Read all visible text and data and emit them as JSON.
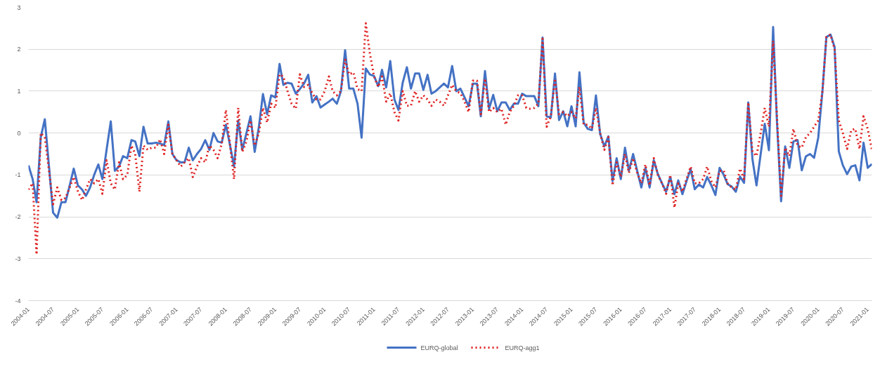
{
  "chart_data": {
    "type": "line",
    "x": [
      "2004-01",
      "2004-02",
      "2004-03",
      "2004-04",
      "2004-05",
      "2004-06",
      "2004-07",
      "2004-08",
      "2004-09",
      "2004-10",
      "2004-11",
      "2004-12",
      "2005-01",
      "2005-02",
      "2005-03",
      "2005-04",
      "2005-05",
      "2005-06",
      "2005-07",
      "2005-08",
      "2005-09",
      "2005-10",
      "2005-11",
      "2005-12",
      "2006-01",
      "2006-02",
      "2006-03",
      "2006-04",
      "2006-05",
      "2006-06",
      "2006-07",
      "2006-08",
      "2006-09",
      "2006-10",
      "2006-11",
      "2006-12",
      "2007-01",
      "2007-02",
      "2007-03",
      "2007-04",
      "2007-05",
      "2007-06",
      "2007-07",
      "2007-08",
      "2007-09",
      "2007-10",
      "2007-11",
      "2007-12",
      "2008-01",
      "2008-02",
      "2008-03",
      "2008-04",
      "2008-05",
      "2008-06",
      "2008-07",
      "2008-08",
      "2008-09",
      "2008-10",
      "2008-11",
      "2008-12",
      "2009-01",
      "2009-02",
      "2009-03",
      "2009-04",
      "2009-05",
      "2009-06",
      "2009-07",
      "2009-08",
      "2009-09",
      "2009-10",
      "2009-11",
      "2009-12",
      "2010-01",
      "2010-02",
      "2010-03",
      "2010-04",
      "2010-05",
      "2010-06",
      "2010-07",
      "2010-08",
      "2010-09",
      "2010-10",
      "2010-11",
      "2010-12",
      "2011-01",
      "2011-02",
      "2011-03",
      "2011-04",
      "2011-05",
      "2011-06",
      "2011-07",
      "2011-08",
      "2011-09",
      "2011-10",
      "2011-11",
      "2011-12",
      "2012-01",
      "2012-02",
      "2012-03",
      "2012-04",
      "2012-05",
      "2012-06",
      "2012-07",
      "2012-08",
      "2012-09",
      "2012-10",
      "2012-11",
      "2012-12",
      "2013-01",
      "2013-02",
      "2013-03",
      "2013-04",
      "2013-05",
      "2013-06",
      "2013-07",
      "2013-08",
      "2013-09",
      "2013-10",
      "2013-11",
      "2013-12",
      "2014-01",
      "2014-02",
      "2014-03",
      "2014-04",
      "2014-05",
      "2014-06",
      "2014-07",
      "2014-08",
      "2014-09",
      "2014-10",
      "2014-11",
      "2014-12",
      "2015-01",
      "2015-02",
      "2015-03",
      "2015-04",
      "2015-05",
      "2015-06",
      "2015-07",
      "2015-08",
      "2015-09",
      "2015-10",
      "2015-11",
      "2015-12",
      "2016-01",
      "2016-02",
      "2016-03",
      "2016-04",
      "2016-05",
      "2016-06",
      "2016-07",
      "2016-08",
      "2016-09",
      "2016-10",
      "2016-11",
      "2016-12",
      "2017-01",
      "2017-02",
      "2017-03",
      "2017-04",
      "2017-05",
      "2017-06",
      "2017-07",
      "2017-08",
      "2017-09",
      "2017-10",
      "2017-11",
      "2017-12",
      "2018-01",
      "2018-02",
      "2018-03",
      "2018-04",
      "2018-05",
      "2018-06",
      "2018-07",
      "2018-08",
      "2018-09",
      "2018-10",
      "2018-11",
      "2018-12",
      "2019-01",
      "2019-02",
      "2019-03",
      "2019-04",
      "2019-05",
      "2019-06",
      "2019-07",
      "2019-08",
      "2019-09",
      "2019-10",
      "2019-11",
      "2019-12",
      "2020-01",
      "2020-02",
      "2020-03",
      "2020-04",
      "2020-05",
      "2020-06",
      "2020-07",
      "2020-08",
      "2020-09",
      "2020-10",
      "2020-11",
      "2020-12",
      "2021-01",
      "2021-02"
    ],
    "series": [
      {
        "name": "EURQ-global",
        "color": "#4472c4",
        "line_style": "solid",
        "values": [
          -0.77,
          -1.1,
          -1.65,
          -0.1,
          0.33,
          -0.8,
          -1.9,
          -2.02,
          -1.65,
          -1.65,
          -1.25,
          -0.85,
          -1.25,
          -1.35,
          -1.5,
          -1.3,
          -1.0,
          -0.75,
          -1.1,
          -0.4,
          0.28,
          -0.9,
          -0.8,
          -0.55,
          -0.6,
          -0.17,
          -0.2,
          -0.55,
          0.15,
          -0.25,
          -0.25,
          -0.23,
          -0.25,
          -0.29,
          0.28,
          -0.5,
          -0.65,
          -0.7,
          -0.7,
          -0.35,
          -0.65,
          -0.5,
          -0.38,
          -0.17,
          -0.4,
          0.0,
          -0.2,
          -0.23,
          0.2,
          -0.3,
          -0.8,
          0.3,
          -0.4,
          0.0,
          0.4,
          -0.45,
          0.15,
          0.93,
          0.45,
          0.9,
          0.85,
          1.65,
          1.15,
          1.2,
          1.18,
          0.94,
          1.05,
          1.18,
          1.39,
          0.73,
          0.88,
          0.61,
          0.68,
          0.75,
          0.82,
          0.7,
          1.0,
          1.98,
          1.06,
          1.06,
          0.7,
          -0.11,
          1.54,
          1.4,
          1.36,
          1.12,
          1.51,
          1.09,
          1.72,
          0.8,
          0.55,
          1.2,
          1.57,
          1.06,
          1.42,
          1.42,
          1.03,
          1.39,
          0.94,
          1.0,
          1.09,
          1.18,
          1.09,
          1.6,
          1.0,
          1.06,
          0.85,
          0.64,
          1.18,
          1.18,
          0.4,
          1.48,
          0.58,
          0.91,
          0.52,
          0.73,
          0.73,
          0.55,
          0.7,
          0.7,
          0.94,
          0.88,
          0.88,
          0.88,
          0.64,
          2.28,
          0.4,
          0.37,
          1.42,
          0.31,
          0.52,
          0.16,
          0.64,
          0.16,
          1.45,
          0.25,
          0.1,
          0.07,
          0.9,
          -0.02,
          -0.32,
          -0.08,
          -1.15,
          -0.6,
          -1.1,
          -0.35,
          -0.9,
          -0.5,
          -0.9,
          -1.3,
          -0.83,
          -1.3,
          -0.65,
          -0.98,
          -1.2,
          -1.4,
          -1.05,
          -1.46,
          -1.13,
          -1.46,
          -1.15,
          -0.86,
          -1.34,
          -1.23,
          -1.3,
          -1.05,
          -1.25,
          -1.48,
          -0.83,
          -1.0,
          -1.22,
          -1.28,
          -1.4,
          -1.04,
          -1.19,
          0.73,
          -0.62,
          -1.25,
          -0.5,
          0.22,
          -0.41,
          2.53,
          0.3,
          -1.63,
          -0.32,
          -0.83,
          -0.2,
          -0.17,
          -0.89,
          -0.56,
          -0.5,
          -0.59,
          -0.11,
          1.0,
          2.29,
          2.35,
          2.05,
          -0.44,
          -0.77,
          -0.98,
          -0.8,
          -0.77,
          -1.13,
          -0.23,
          -0.83,
          -0.74
        ]
      },
      {
        "name": "EURQ-agg1",
        "color": "#e02020",
        "line_style": "dotted",
        "values": [
          -1.35,
          -1.2,
          -2.9,
          0.0,
          -0.1,
          -0.9,
          -1.7,
          -1.3,
          -1.6,
          -1.55,
          -1.3,
          -1.05,
          -1.4,
          -1.6,
          -1.35,
          -1.1,
          -1.2,
          -1.1,
          -1.45,
          -0.65,
          -1.2,
          -1.35,
          -0.7,
          -1.1,
          -1.0,
          -0.3,
          -0.5,
          -1.4,
          -0.3,
          -0.4,
          -0.35,
          -0.35,
          -0.15,
          -0.5,
          0.2,
          -0.5,
          -0.65,
          -0.8,
          -0.7,
          -0.6,
          -1.05,
          -0.8,
          -0.6,
          -0.7,
          -0.3,
          -0.4,
          -0.6,
          -0.25,
          0.55,
          -0.3,
          -1.1,
          0.6,
          -0.45,
          -0.2,
          0.3,
          -0.3,
          0.0,
          0.6,
          0.25,
          0.7,
          0.6,
          1.4,
          1.35,
          1.0,
          0.7,
          0.58,
          1.4,
          1.1,
          1.15,
          0.95,
          0.8,
          0.8,
          1.0,
          1.35,
          1.0,
          0.9,
          1.0,
          1.75,
          1.4,
          1.45,
          1.05,
          1.0,
          2.62,
          1.9,
          1.35,
          1.1,
          1.35,
          0.75,
          0.95,
          0.5,
          0.3,
          1.0,
          0.65,
          0.65,
          1.0,
          0.75,
          0.9,
          0.8,
          0.65,
          0.8,
          0.75,
          0.65,
          0.9,
          1.15,
          1.0,
          0.95,
          0.75,
          0.5,
          1.25,
          1.25,
          0.45,
          1.3,
          0.5,
          0.6,
          0.5,
          0.58,
          0.2,
          0.5,
          0.65,
          0.9,
          0.9,
          0.6,
          0.58,
          0.6,
          0.7,
          2.25,
          0.15,
          0.4,
          1.3,
          0.45,
          0.5,
          0.4,
          0.5,
          0.35,
          1.1,
          0.2,
          0.2,
          0.1,
          0.6,
          0.0,
          -0.4,
          -0.1,
          -1.25,
          -0.7,
          -1.05,
          -0.5,
          -0.95,
          -0.6,
          -0.95,
          -1.2,
          -0.75,
          -1.25,
          -0.6,
          -1.0,
          -1.2,
          -1.45,
          -1.0,
          -1.78,
          -1.2,
          -1.4,
          -1.1,
          -0.8,
          -1.2,
          -1.2,
          -1.1,
          -0.8,
          -1.15,
          -1.3,
          -0.9,
          -0.9,
          -1.2,
          -1.3,
          -1.35,
          -0.85,
          -1.1,
          0.73,
          -0.45,
          -0.55,
          0.0,
          0.6,
          0.15,
          2.2,
          0.4,
          -1.5,
          -0.35,
          -0.55,
          0.1,
          -0.3,
          -0.35,
          -0.1,
          0.0,
          0.15,
          0.3,
          1.0,
          2.29,
          2.35,
          2.0,
          0.3,
          0.0,
          -0.38,
          0.07,
          0.1,
          -0.38,
          0.4,
          0.1,
          -0.4
        ]
      }
    ],
    "xlim": [
      "2004-01",
      "2021-02"
    ],
    "xticks": [
      "2004-01",
      "2004-07",
      "2005-01",
      "2005-07",
      "2006-01",
      "2006-07",
      "2007-01",
      "2007-07",
      "2008-01",
      "2008-07",
      "2009-01",
      "2009-07",
      "2010-01",
      "2010-07",
      "2011-01",
      "2011-07",
      "2012-01",
      "2012-07",
      "2013-01",
      "2013-07",
      "2014-01",
      "2014-07",
      "2015-01",
      "2015-07",
      "2016-01",
      "2016-07",
      "2017-01",
      "2017-07",
      "2018-01",
      "2018-07",
      "2019-01",
      "2019-07",
      "2020-01",
      "2020-07",
      "2021-01"
    ],
    "ylim": [
      -4,
      3
    ],
    "yticks": [
      -4,
      -3,
      -2,
      -1,
      0,
      1,
      2,
      3
    ],
    "grid": "y",
    "legend": "bottom"
  }
}
